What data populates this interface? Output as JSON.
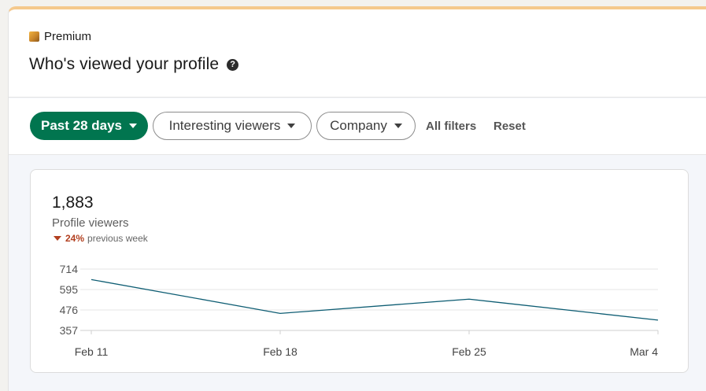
{
  "header": {
    "badge_label": "Premium",
    "badge_icon": "premium-icon",
    "title": "Who's viewed your profile",
    "help_icon": "question-circle-icon",
    "help_glyph": "?"
  },
  "filters": {
    "time_range": "Past 28 days",
    "viewers": "Interesting viewers",
    "company": "Company",
    "all_filters": "All filters",
    "reset": "Reset"
  },
  "card": {
    "count": "1,883",
    "label": "Profile viewers",
    "delta_value": "24%",
    "delta_text": "previous week",
    "delta_direction": "down"
  },
  "colors": {
    "accent_green": "#01754f",
    "line": "#0e5d73",
    "negative": "#b24020",
    "premium_gold": "#e0a33a"
  },
  "chart_data": {
    "type": "line",
    "categories": [
      "Feb 11",
      "Feb 18",
      "Feb 25",
      "Mar 4"
    ],
    "series": [
      {
        "values": [
          653,
          456,
          539,
          417
        ]
      }
    ],
    "yticks": [
      357,
      476,
      595,
      714
    ],
    "ylim": [
      357,
      714
    ],
    "grid": true,
    "title": "",
    "xlabel": "",
    "ylabel": ""
  }
}
